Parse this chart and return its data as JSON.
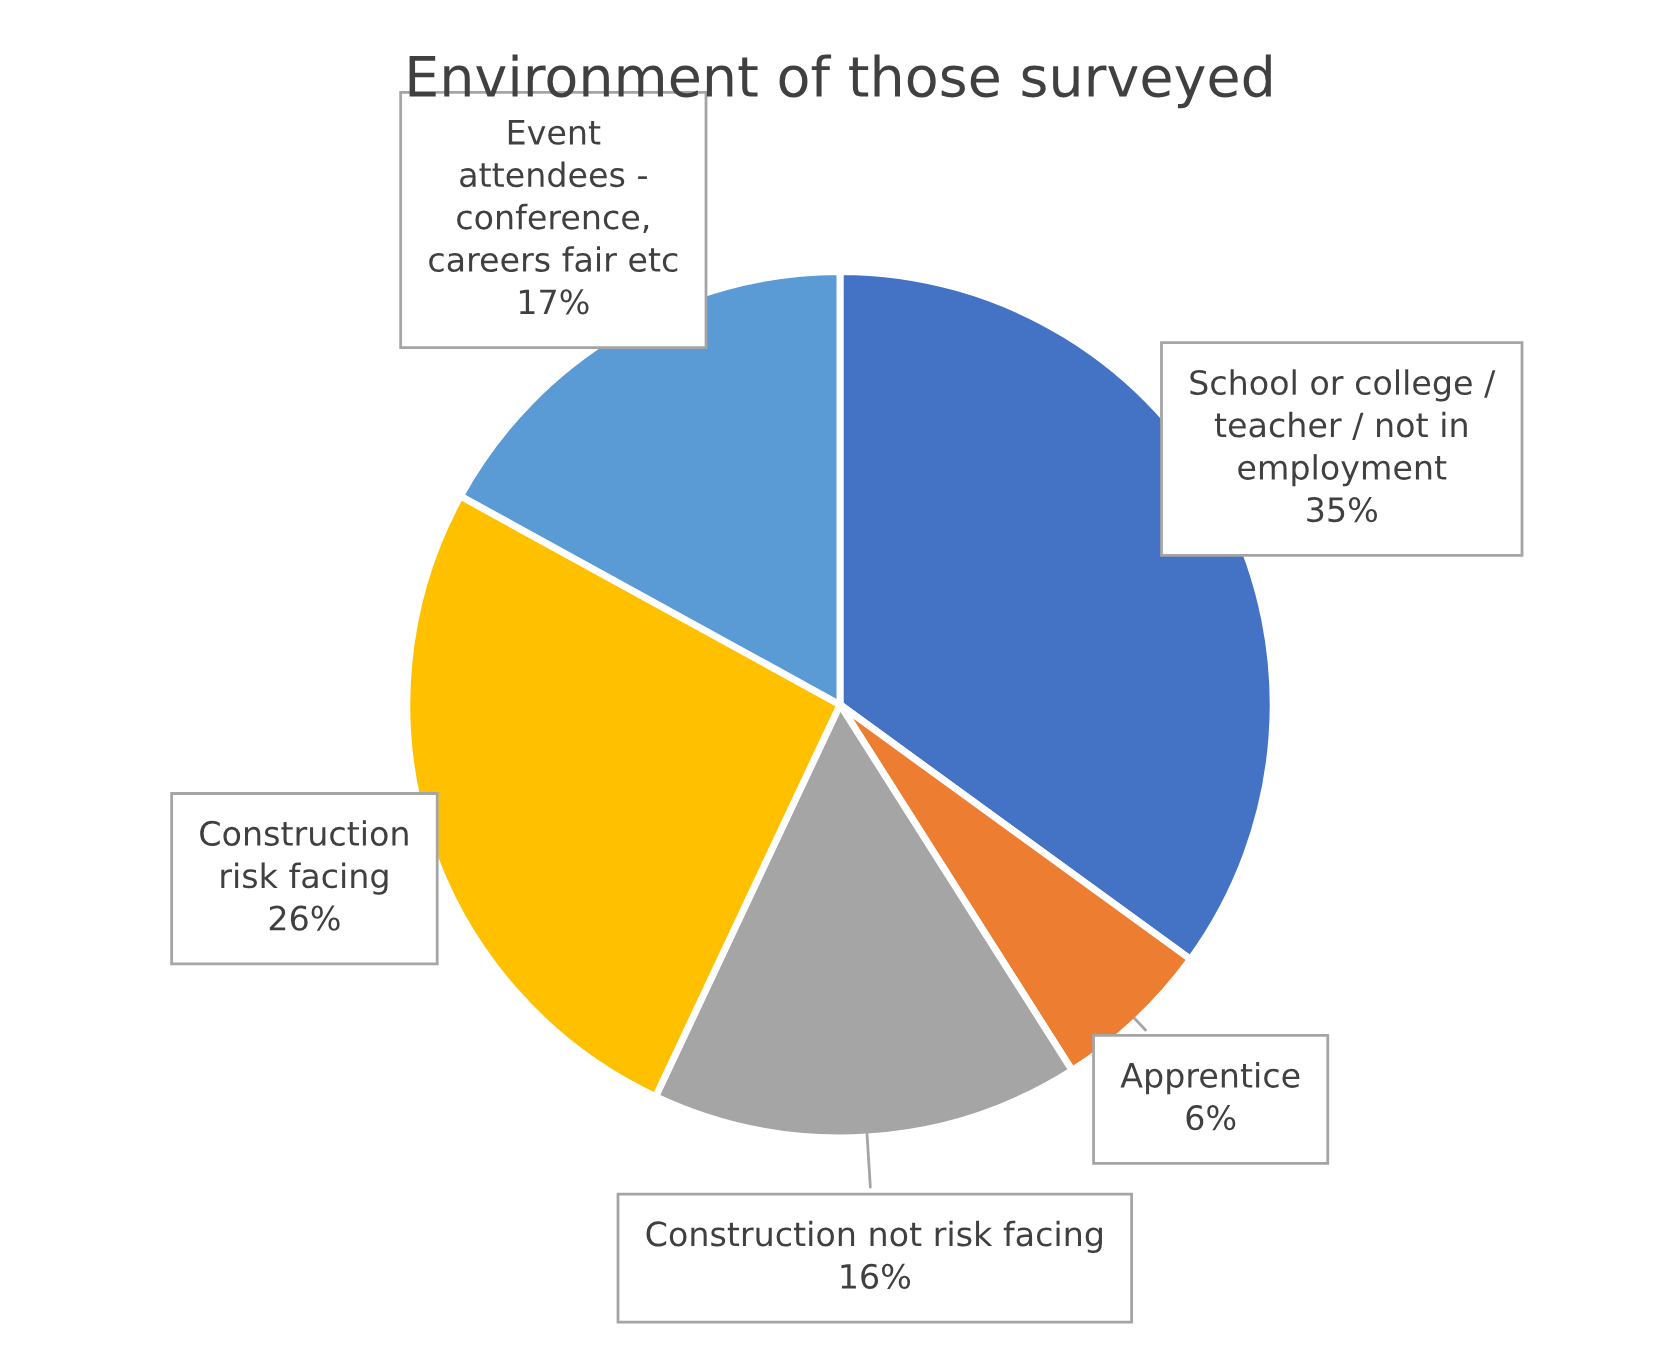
{
  "chart_data": {
    "type": "pie",
    "title": "Environment of those surveyed",
    "categories": [
      "School or college /\nteacher / not in\nemployment",
      "Apprentice",
      "Construction not risk facing",
      "Construction\nrisk facing",
      "Event\nattendees -\nconference,\ncareers fair etc"
    ],
    "values": [
      35,
      6,
      16,
      26,
      17
    ],
    "value_labels": [
      "35%",
      "6%",
      "16%",
      "26%",
      "17%"
    ],
    "colors": [
      "#4472c4",
      "#ed7d31",
      "#a5a5a5",
      "#ffc000",
      "#5b9bd5"
    ],
    "legend": false
  }
}
